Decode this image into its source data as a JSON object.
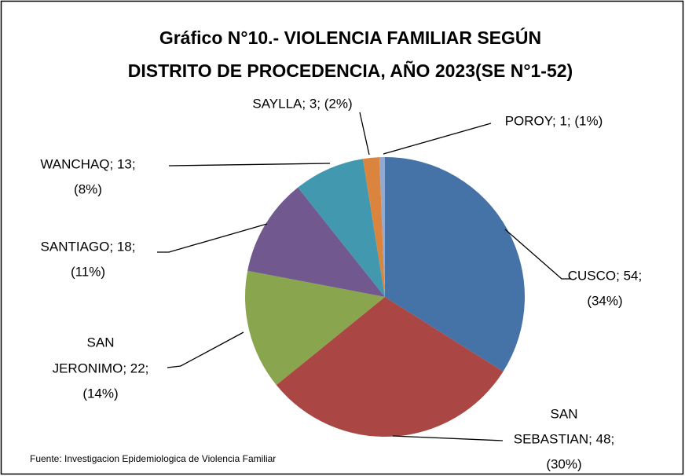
{
  "chart_data": {
    "type": "pie",
    "title": [
      "Gráfico N°10.- VIOLENCIA FAMILIAR SEGÚN",
      "DISTRITO DE PROCEDENCIA, AÑO 2023(SE N°1-52)"
    ],
    "categories": [
      "CUSCO",
      "SAN SEBASTIAN",
      "SAN JERONIMO",
      "SANTIAGO",
      "WANCHAQ",
      "SAYLLA",
      "POROY"
    ],
    "values": [
      54,
      48,
      22,
      18,
      13,
      3,
      1
    ],
    "colors": [
      "#4572a7",
      "#aa4643",
      "#89a54e",
      "#71588f",
      "#4198af",
      "#db843d",
      "#93a9cf"
    ],
    "data_labels": [
      [
        "CUSCO; 54;",
        "(34%)"
      ],
      [
        "SAN",
        "SEBASTIAN; 48;",
        "(30%)"
      ],
      [
        "SAN",
        "JERONIMO; 22;",
        "(14%)"
      ],
      [
        "SANTIAGO; 18;",
        "(11%)"
      ],
      [
        "WANCHAQ; 13;",
        "(8%)"
      ],
      [
        "SAYLLA; 3; (2%)"
      ],
      [
        "POROY; 1; (1%)"
      ]
    ],
    "source": "Fuente: Investigacion Epidemiologica de Violencia Familiar"
  }
}
